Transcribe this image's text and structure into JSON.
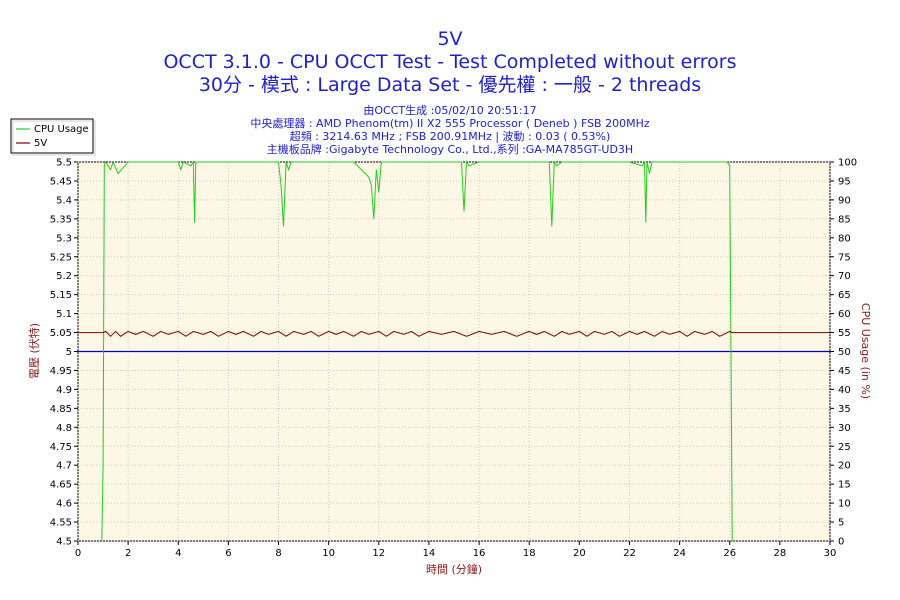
{
  "chart_data": {
    "type": "line",
    "title": "5V",
    "subtitle_lines": [
      "OCCT 3.1.0 - CPU OCCT Test - Test Completed without errors",
      "30分 - 模式 : Large Data Set - 優先權 : 一般 - 2 threads"
    ],
    "info_lines": [
      "由OCCT生成 :05/02/10 20:51:17",
      "中央處理器 : AMD Phenom(tm) II X2 555 Processor ( Deneb ) FSB 200MHz",
      "超頻 : 3214.63 MHz ; FSB 200.91MHz | 波動 : 0.03 ( 0.53%)",
      "主機板品牌 :Gigabyte Technology Co., Ltd.,系列 :GA-MA785GT-UD3H"
    ],
    "xlabel": "時間 (分鐘)",
    "ylabel_left": "電壓 (伏特)",
    "ylabel_right": "CPU Usage (in %)",
    "xlim": [
      0,
      30
    ],
    "ylim_left": [
      4.5,
      5.5
    ],
    "ylim_right": [
      0,
      100
    ],
    "x_ticks": [
      "0",
      "2",
      "4",
      "6",
      "8",
      "10",
      "12",
      "14",
      "16",
      "18",
      "20",
      "22",
      "24",
      "26",
      "28",
      "30"
    ],
    "y_ticks_left": [
      "4.5",
      "4.55",
      "4.6",
      "4.65",
      "4.7",
      "4.75",
      "4.8",
      "4.85",
      "4.9",
      "4.95",
      "5",
      "5.05",
      "5.1",
      "5.15",
      "5.2",
      "5.25",
      "5.3",
      "5.35",
      "5.4",
      "5.45",
      "5.5"
    ],
    "y_ticks_right": [
      "0",
      "5",
      "10",
      "15",
      "20",
      "25",
      "30",
      "35",
      "40",
      "45",
      "50",
      "55",
      "60",
      "65",
      "70",
      "75",
      "80",
      "85",
      "90",
      "95",
      "100"
    ],
    "grid": true,
    "legend_position": "top-left",
    "reference_line": {
      "axis": "left",
      "value": 5.0,
      "color": "#0000cc"
    },
    "series": [
      {
        "name": "CPU Usage",
        "axis": "right",
        "color": "#22cc22",
        "x": [
          0.95,
          1.0,
          1.05,
          1.1,
          1.3,
          1.4,
          1.6,
          2.0,
          2.5,
          3.0,
          3.5,
          4.0,
          4.1,
          4.2,
          4.5,
          4.6,
          4.65,
          4.7,
          5.0,
          6.0,
          7.0,
          8.0,
          8.1,
          8.2,
          8.3,
          8.4,
          8.5,
          9.0,
          10.0,
          11.0,
          11.6,
          11.7,
          11.8,
          11.9,
          12.0,
          12.1,
          13.0,
          14.0,
          15.0,
          15.3,
          15.4,
          15.5,
          15.6,
          16.0,
          17.0,
          18.0,
          18.8,
          18.9,
          19.0,
          19.1,
          19.3,
          20.0,
          21.0,
          22.0,
          22.5,
          22.6,
          22.65,
          22.7,
          22.8,
          22.9,
          23.0,
          24.0,
          25.0,
          25.9,
          26.0,
          26.05,
          26.1
        ],
        "values": [
          0,
          20,
          99,
          100,
          98,
          100,
          97,
          100,
          100,
          100,
          100,
          100,
          98,
          100,
          99,
          100,
          84,
          100,
          100,
          100,
          100,
          100,
          94,
          83,
          100,
          98,
          100,
          100,
          100,
          100,
          96,
          94,
          85,
          98,
          92,
          100,
          100,
          100,
          100,
          100,
          87,
          100,
          99,
          100,
          100,
          100,
          100,
          83,
          100,
          99,
          100,
          100,
          100,
          100,
          99,
          100,
          84,
          100,
          97,
          100,
          100,
          100,
          100,
          100,
          99,
          50,
          0
        ]
      },
      {
        "name": "5V",
        "axis": "left",
        "color": "#800000",
        "x": [
          0,
          0.95,
          1.0,
          1.1,
          1.3,
          1.5,
          1.7,
          2.0,
          2.3,
          2.6,
          3.0,
          3.3,
          3.6,
          4.0,
          4.3,
          4.6,
          5.0,
          5.3,
          5.6,
          6.0,
          6.3,
          6.6,
          7.0,
          7.3,
          7.6,
          8.0,
          8.3,
          8.6,
          9.0,
          9.3,
          9.6,
          10.0,
          10.3,
          10.6,
          11.0,
          11.3,
          11.6,
          12.0,
          12.3,
          12.6,
          13.0,
          13.3,
          13.6,
          14.0,
          14.5,
          15.0,
          15.5,
          16.0,
          16.5,
          17.0,
          17.5,
          18.0,
          18.3,
          18.6,
          19.0,
          19.3,
          19.6,
          20.0,
          20.3,
          20.6,
          21.0,
          21.3,
          21.6,
          22.0,
          22.3,
          22.6,
          23.0,
          23.3,
          23.6,
          24.0,
          24.3,
          24.6,
          25.0,
          25.3,
          25.6,
          26.0,
          26.1,
          30
        ],
        "values": [
          5.05,
          5.05,
          5.05,
          5.053,
          5.04,
          5.053,
          5.04,
          5.053,
          5.045,
          5.053,
          5.04,
          5.053,
          5.045,
          5.053,
          5.04,
          5.053,
          5.045,
          5.053,
          5.04,
          5.053,
          5.045,
          5.053,
          5.04,
          5.053,
          5.045,
          5.053,
          5.04,
          5.053,
          5.045,
          5.053,
          5.04,
          5.053,
          5.045,
          5.053,
          5.04,
          5.053,
          5.045,
          5.053,
          5.04,
          5.053,
          5.045,
          5.053,
          5.04,
          5.053,
          5.045,
          5.053,
          5.04,
          5.053,
          5.045,
          5.053,
          5.04,
          5.053,
          5.045,
          5.053,
          5.04,
          5.053,
          5.045,
          5.053,
          5.04,
          5.053,
          5.045,
          5.053,
          5.04,
          5.053,
          5.045,
          5.053,
          5.04,
          5.053,
          5.045,
          5.053,
          5.04,
          5.053,
          5.045,
          5.053,
          5.04,
          5.053,
          5.05,
          5.05
        ]
      }
    ]
  }
}
